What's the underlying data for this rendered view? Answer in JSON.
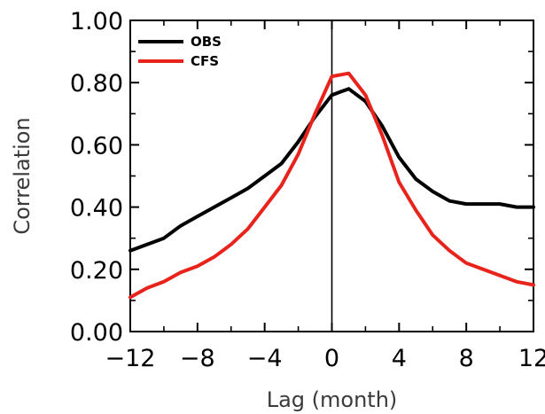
{
  "chart_data": {
    "type": "line",
    "xlabel": "Lag (month)",
    "ylabel": "Correlation",
    "xlim": [
      -12,
      12
    ],
    "ylim": [
      0,
      1
    ],
    "xticks": [
      "−12",
      "−8",
      "−4",
      "0",
      "4",
      "8",
      "12"
    ],
    "yticks": [
      "0.00",
      "0.20",
      "0.40",
      "0.60",
      "0.80",
      "1.00"
    ],
    "grid": false,
    "legend_position": "top-left",
    "x": [
      -12,
      -11,
      -10,
      -9,
      -8,
      -7,
      -6,
      -5,
      -4,
      -3,
      -2,
      -1,
      0,
      1,
      2,
      3,
      4,
      5,
      6,
      7,
      8,
      9,
      10,
      11,
      12
    ],
    "series": [
      {
        "name": "OBS",
        "color": "#000000",
        "values": [
          0.26,
          0.28,
          0.3,
          0.34,
          0.37,
          0.4,
          0.43,
          0.46,
          0.5,
          0.54,
          0.61,
          0.69,
          0.76,
          0.78,
          0.74,
          0.66,
          0.56,
          0.49,
          0.45,
          0.42,
          0.41,
          0.41,
          0.41,
          0.4,
          0.4
        ]
      },
      {
        "name": "CFS",
        "color": "#e8231c",
        "values": [
          0.11,
          0.14,
          0.16,
          0.19,
          0.21,
          0.24,
          0.28,
          0.33,
          0.4,
          0.47,
          0.57,
          0.7,
          0.82,
          0.83,
          0.76,
          0.63,
          0.48,
          0.39,
          0.31,
          0.26,
          0.22,
          0.2,
          0.18,
          0.16,
          0.15
        ]
      }
    ]
  }
}
